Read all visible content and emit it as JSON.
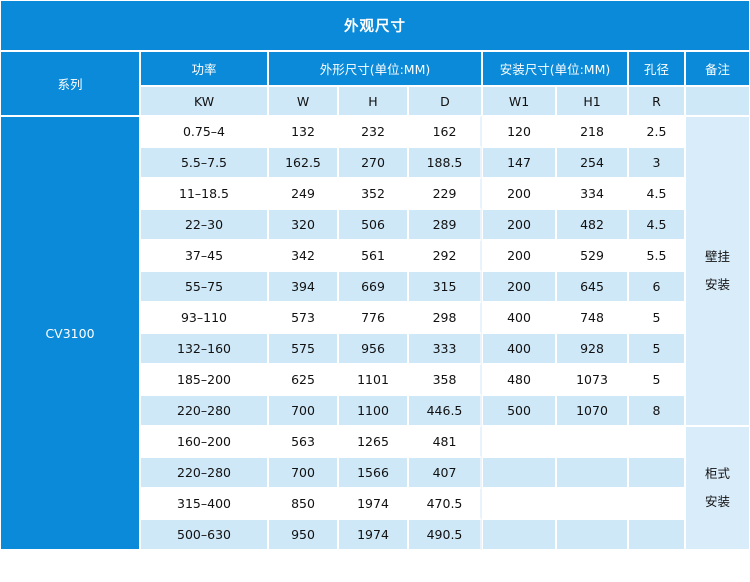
{
  "title": "外观尺寸",
  "headers": {
    "series": "系列",
    "power": "功率",
    "outline": "外形尺寸(单位:MM)",
    "mount": "安装尺寸(单位:MM)",
    "hole": "孔径",
    "remark": "备注"
  },
  "subheaders": {
    "kw": "KW",
    "w": "W",
    "h": "H",
    "d": "D",
    "w1": "W1",
    "h1": "H1",
    "r": "R"
  },
  "series_name": "CV3100",
  "notes": {
    "wall_1": "壁挂",
    "wall_2": "安装",
    "cab_1": "柜式",
    "cab_2": "安装"
  },
  "rows": [
    {
      "kw": "0.75–4",
      "w": "132",
      "h": "232",
      "d": "162",
      "w1": "120",
      "h1": "218",
      "r": "2.5"
    },
    {
      "kw": "5.5–7.5",
      "w": "162.5",
      "h": "270",
      "d": "188.5",
      "w1": "147",
      "h1": "254",
      "r": "3"
    },
    {
      "kw": "11–18.5",
      "w": "249",
      "h": "352",
      "d": "229",
      "w1": "200",
      "h1": "334",
      "r": "4.5"
    },
    {
      "kw": "22–30",
      "w": "320",
      "h": "506",
      "d": "289",
      "w1": "200",
      "h1": "482",
      "r": "4.5"
    },
    {
      "kw": "37–45",
      "w": "342",
      "h": "561",
      "d": "292",
      "w1": "200",
      "h1": "529",
      "r": "5.5"
    },
    {
      "kw": "55–75",
      "w": "394",
      "h": "669",
      "d": "315",
      "w1": "200",
      "h1": "645",
      "r": "6"
    },
    {
      "kw": "93–110",
      "w": "573",
      "h": "776",
      "d": "298",
      "w1": "400",
      "h1": "748",
      "r": "5"
    },
    {
      "kw": "132–160",
      "w": "575",
      "h": "956",
      "d": "333",
      "w1": "400",
      "h1": "928",
      "r": "5"
    },
    {
      "kw": "185–200",
      "w": "625",
      "h": "1101",
      "d": "358",
      "w1": "480",
      "h1": "1073",
      "r": "5"
    },
    {
      "kw": "220–280",
      "w": "700",
      "h": "1100",
      "d": "446.5",
      "w1": "500",
      "h1": "1070",
      "r": "8"
    },
    {
      "kw": "160–200",
      "w": "563",
      "h": "1265",
      "d": "481",
      "w1": "",
      "h1": "",
      "r": ""
    },
    {
      "kw": "220–280",
      "w": "700",
      "h": "1566",
      "d": "407",
      "w1": "",
      "h1": "",
      "r": ""
    },
    {
      "kw": "315–400",
      "w": "850",
      "h": "1974",
      "d": "470.5",
      "w1": "",
      "h1": "",
      "r": ""
    },
    {
      "kw": "500–630",
      "w": "950",
      "h": "1974",
      "d": "490.5",
      "w1": "",
      "h1": "",
      "r": ""
    }
  ]
}
